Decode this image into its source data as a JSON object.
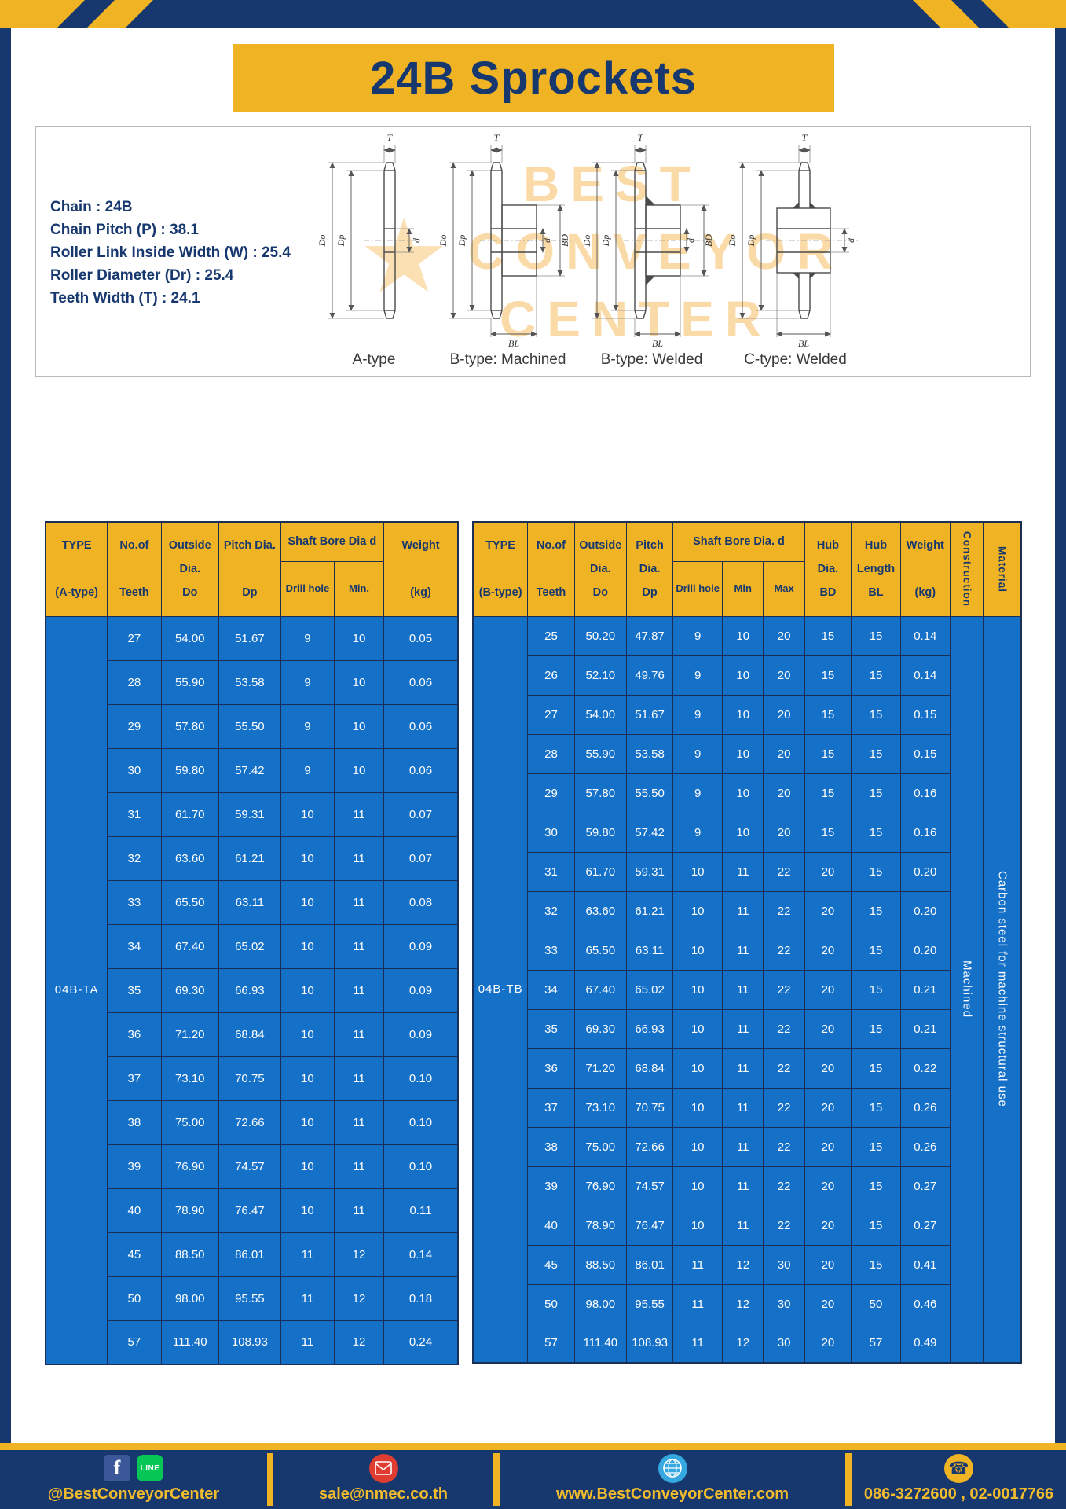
{
  "header": {
    "title": "24B Sprockets"
  },
  "diagram": {
    "specs": [
      "Chain : 24B",
      "Chain Pitch (P) : 38.1",
      "Roller Link Inside Width (W) : 25.4",
      "Roller Diameter (Dr) : 25.4",
      "Teeth Width (T) : 24.1"
    ],
    "figures": [
      "A-type",
      "B-type: Machined",
      "B-type: Welded",
      "C-type: Welded"
    ],
    "dims": {
      "t": "T",
      "do_": "Do",
      "dp": "Dp",
      "d": "d",
      "bd": "BD",
      "bl": "BL"
    },
    "watermark": {
      "line1": "BEST",
      "line2": "CONVEYOR",
      "line3": "CENTER",
      "star": "★"
    }
  },
  "tableA": {
    "headers": {
      "type": "TYPE\n\n(A-type)",
      "teeth": "No.of\n\nTeeth",
      "outside": "Outside\nDia.\nDo",
      "pitch": "Pitch Dia.\n\nDp",
      "shaft_group": "Shaft Bore Dia d",
      "drill": "Drill hole",
      "min": "Min.",
      "weight": "Weight\n\n(kg)"
    },
    "type_value": "04B-TA",
    "rows": [
      [
        "27",
        "54.00",
        "51.67",
        "9",
        "10",
        "0.05"
      ],
      [
        "28",
        "55.90",
        "53.58",
        "9",
        "10",
        "0.06"
      ],
      [
        "29",
        "57.80",
        "55.50",
        "9",
        "10",
        "0.06"
      ],
      [
        "30",
        "59.80",
        "57.42",
        "9",
        "10",
        "0.06"
      ],
      [
        "31",
        "61.70",
        "59.31",
        "10",
        "11",
        "0.07"
      ],
      [
        "32",
        "63.60",
        "61.21",
        "10",
        "11",
        "0.07"
      ],
      [
        "33",
        "65.50",
        "63.11",
        "10",
        "11",
        "0.08"
      ],
      [
        "34",
        "67.40",
        "65.02",
        "10",
        "11",
        "0.09"
      ],
      [
        "35",
        "69.30",
        "66.93",
        "10",
        "11",
        "0.09"
      ],
      [
        "36",
        "71.20",
        "68.84",
        "10",
        "11",
        "0.09"
      ],
      [
        "37",
        "73.10",
        "70.75",
        "10",
        "11",
        "0.10"
      ],
      [
        "38",
        "75.00",
        "72.66",
        "10",
        "11",
        "0.10"
      ],
      [
        "39",
        "76.90",
        "74.57",
        "10",
        "11",
        "0.10"
      ],
      [
        "40",
        "78.90",
        "76.47",
        "10",
        "11",
        "0.11"
      ],
      [
        "45",
        "88.50",
        "86.01",
        "11",
        "12",
        "0.14"
      ],
      [
        "50",
        "98.00",
        "95.55",
        "11",
        "12",
        "0.18"
      ],
      [
        "57",
        "111.40",
        "108.93",
        "11",
        "12",
        "0.24"
      ]
    ]
  },
  "tableB": {
    "headers": {
      "type": "TYPE\n\n(B-type)",
      "teeth": "No.of\n\nTeeth",
      "outside": "Outside\nDia.\nDo",
      "pitch": "Pitch\nDia.\nDp",
      "shaft_group": "Shaft Bore Dia. d",
      "drill": "Drill hole",
      "min": "Min",
      "max": "Max",
      "hub_dia": "Hub\nDia.\nBD",
      "hub_len": "Hub\nLength\nBL",
      "weight": "Weight\n\n(kg)",
      "construction": "Construction",
      "material": "Material"
    },
    "type_value": "04B-TB",
    "construction": "Machined",
    "material": "Carbon steel for machine structural use",
    "rows": [
      [
        "25",
        "50.20",
        "47.87",
        "9",
        "10",
        "20",
        "15",
        "15",
        "0.14"
      ],
      [
        "26",
        "52.10",
        "49.76",
        "9",
        "10",
        "20",
        "15",
        "15",
        "0.14"
      ],
      [
        "27",
        "54.00",
        "51.67",
        "9",
        "10",
        "20",
        "15",
        "15",
        "0.15"
      ],
      [
        "28",
        "55.90",
        "53.58",
        "9",
        "10",
        "20",
        "15",
        "15",
        "0.15"
      ],
      [
        "29",
        "57.80",
        "55.50",
        "9",
        "10",
        "20",
        "15",
        "15",
        "0.16"
      ],
      [
        "30",
        "59.80",
        "57.42",
        "9",
        "10",
        "20",
        "15",
        "15",
        "0.16"
      ],
      [
        "31",
        "61.70",
        "59.31",
        "10",
        "11",
        "22",
        "20",
        "15",
        "0.20"
      ],
      [
        "32",
        "63.60",
        "61.21",
        "10",
        "11",
        "22",
        "20",
        "15",
        "0.20"
      ],
      [
        "33",
        "65.50",
        "63.11",
        "10",
        "11",
        "22",
        "20",
        "15",
        "0.20"
      ],
      [
        "34",
        "67.40",
        "65.02",
        "10",
        "11",
        "22",
        "20",
        "15",
        "0.21"
      ],
      [
        "35",
        "69.30",
        "66.93",
        "10",
        "11",
        "22",
        "20",
        "15",
        "0.21"
      ],
      [
        "36",
        "71.20",
        "68.84",
        "10",
        "11",
        "22",
        "20",
        "15",
        "0.22"
      ],
      [
        "37",
        "73.10",
        "70.75",
        "10",
        "11",
        "22",
        "20",
        "15",
        "0.26"
      ],
      [
        "38",
        "75.00",
        "72.66",
        "10",
        "11",
        "22",
        "20",
        "15",
        "0.26"
      ],
      [
        "39",
        "76.90",
        "74.57",
        "10",
        "11",
        "22",
        "20",
        "15",
        "0.27"
      ],
      [
        "40",
        "78.90",
        "76.47",
        "10",
        "11",
        "22",
        "20",
        "15",
        "0.27"
      ],
      [
        "45",
        "88.50",
        "86.01",
        "11",
        "12",
        "30",
        "20",
        "15",
        "0.41"
      ],
      [
        "50",
        "98.00",
        "95.55",
        "11",
        "12",
        "30",
        "20",
        "50",
        "0.46"
      ],
      [
        "57",
        "111.40",
        "108.93",
        "11",
        "12",
        "30",
        "20",
        "57",
        "0.49"
      ]
    ]
  },
  "footer": {
    "facebook_label": "f",
    "line_label": "LINE",
    "social": "@BestConveyorCenter",
    "email": "sale@nmec.co.th",
    "website": "www.BestConveyorCenter.com",
    "phone": "086-3272600 , 02-0017766",
    "phone_glyph": "☎"
  },
  "colors": {
    "navy": "#17386E",
    "yellow": "#F0B323",
    "cell_blue": "#1570C8"
  }
}
